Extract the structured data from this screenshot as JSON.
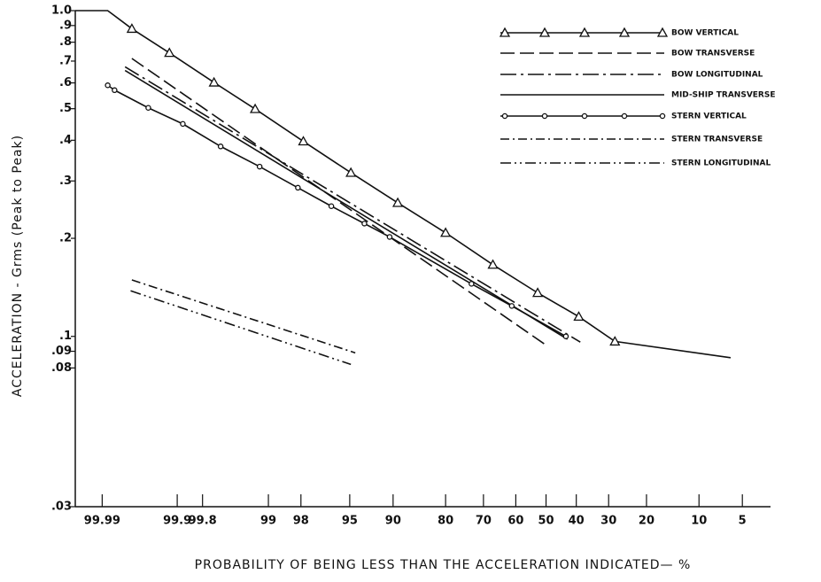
{
  "chart_data": {
    "type": "line",
    "xscale": "probability",
    "yscale": "log",
    "xlabel": "PROBABILITY OF BEING LESS THAN THE ACCELERATION INDICATED— %",
    "ylabel": "ACCELERATION  -  Grms  (Peak to Peak)",
    "xlim": [
      99.996,
      3
    ],
    "ylim": [
      0.03,
      1
    ],
    "xticks": [
      99.99,
      99.9,
      99.8,
      99,
      98,
      95,
      90,
      80,
      70,
      60,
      50,
      40,
      30,
      20,
      10,
      5
    ],
    "yticks": [
      {
        "value": 1,
        "label": "1.0"
      },
      {
        "value": 0.9,
        "label": ".9"
      },
      {
        "value": 0.8,
        "label": ".8"
      },
      {
        "value": 0.7,
        "label": ".7"
      },
      {
        "value": 0.6,
        "label": ".6"
      },
      {
        "value": 0.5,
        "label": ".5"
      },
      {
        "value": 0.4,
        "label": ".4"
      },
      {
        "value": 0.3,
        "label": ".3"
      },
      {
        "value": 0.2,
        "label": ".2"
      },
      {
        "value": 0.1,
        "label": ".1"
      },
      {
        "value": 0.09,
        "label": ".09"
      },
      {
        "value": 0.08,
        "label": ".08"
      },
      {
        "value": 0.03,
        "label": ".03"
      }
    ],
    "legend": "upper right",
    "series": [
      {
        "name": "BOW VERTICAL",
        "color": "#111111",
        "dash": "",
        "marker": "triangle",
        "x": [
          99.996,
          99.988,
          99.974,
          99.92,
          99.73,
          99.26,
          97.9,
          94.9,
          89.3,
          80,
          67.2,
          52.8,
          39.2,
          28.2,
          6.1
        ],
        "values": [
          1.0,
          1.0,
          0.88,
          0.742,
          0.602,
          0.499,
          0.397,
          0.318,
          0.257,
          0.208,
          0.166,
          0.136,
          0.115,
          0.0965,
          0.086
        ]
      },
      {
        "name": "BOW TRANSVERSE",
        "color": "#111111",
        "dash": "16 6",
        "marker": "none",
        "x": [
          99.974,
          50
        ],
        "values": [
          0.713,
          0.094
        ]
      },
      {
        "name": "BOW LONGITUDINAL",
        "color": "#111111",
        "dash": "18 5 3 5",
        "marker": "none",
        "x": [
          99.979,
          38.7
        ],
        "values": [
          0.672,
          0.096
        ]
      },
      {
        "name": "MID-SHIP TRANSVERSE",
        "color": "#111111",
        "dash": "",
        "marker": "none",
        "x": [
          99.979,
          42.9
        ],
        "values": [
          0.655,
          0.098
        ]
      },
      {
        "name": "STERN VERTICAL",
        "color": "#111111",
        "dash": "",
        "marker": "circle",
        "x": [
          99.988,
          99.985,
          99.957,
          99.883,
          99.68,
          99.18,
          98.12,
          96.4,
          93.6,
          90.5,
          73.4,
          61.3,
          43.4
        ],
        "values": [
          0.59,
          0.57,
          0.503,
          0.449,
          0.383,
          0.332,
          0.286,
          0.251,
          0.222,
          0.202,
          0.145,
          0.124,
          0.1
        ]
      },
      {
        "name": "STERN TRANSVERSE",
        "color": "#111111",
        "dash": "10 4 2 4",
        "marker": "none",
        "x": [
          99.974,
          94.5
        ],
        "values": [
          0.149,
          0.089
        ]
      },
      {
        "name": "STERN LONGITUDINAL",
        "color": "#111111",
        "dash": "12 4 2 4 2 4",
        "marker": "none",
        "x": [
          99.975,
          94.9
        ],
        "values": [
          0.138,
          0.082
        ]
      }
    ]
  }
}
